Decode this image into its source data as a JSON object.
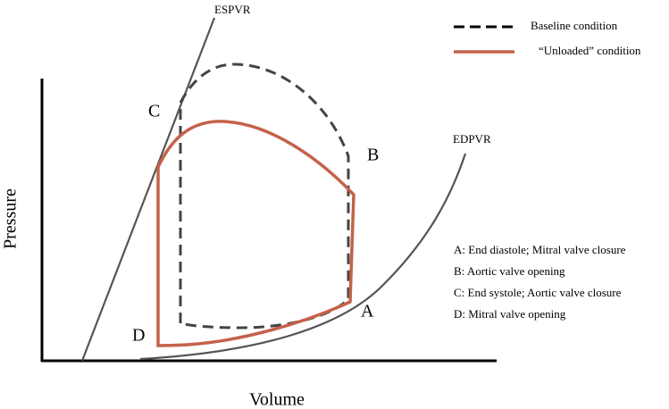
{
  "diagram": {
    "axes": {
      "x_label": "Volume",
      "y_label": "Pressure"
    },
    "curves": {
      "espvr": "ESPVR",
      "edpvr": "EDPVR"
    },
    "points": {
      "a": "A",
      "b": "B",
      "c": "C",
      "d": "D"
    },
    "legend": [
      {
        "label": "Baseline condition"
      },
      {
        "label": "“Unloaded” condition"
      }
    ],
    "notes": [
      "A: End diastole; Mitral valve closure",
      "B: Aortic valve opening",
      "C: End systole; Aortic valve closure",
      "D: Mitral valve opening"
    ]
  }
}
